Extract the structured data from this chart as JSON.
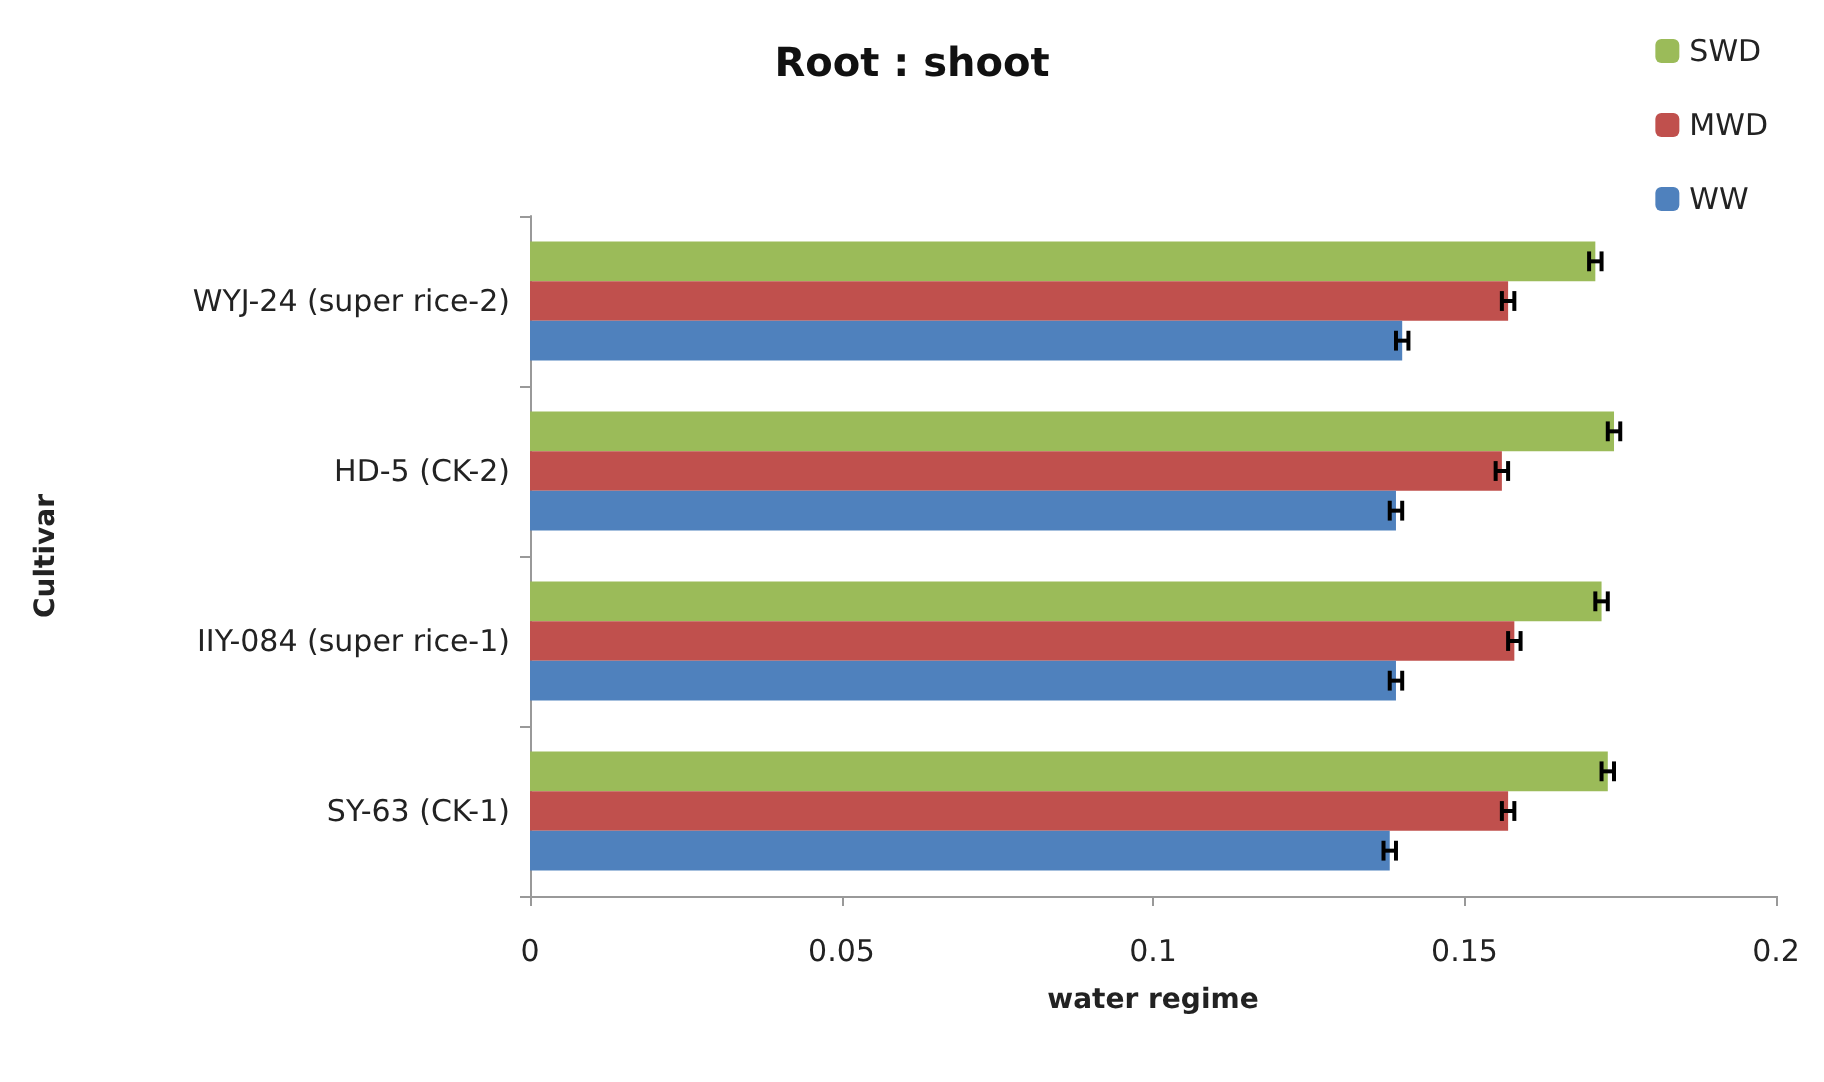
{
  "chart_data": {
    "type": "bar",
    "orientation": "horizontal",
    "title": "Root : shoot",
    "xlabel": "water regime",
    "ylabel": "Cultivar",
    "categories": [
      "WYJ-24 (super rice-2)",
      "HD-5 (CK-2)",
      "IIY-084 (super rice-1)",
      "SY-63 (CK-1)"
    ],
    "series": [
      {
        "name": "SWD",
        "color": "#9bbb59",
        "values": [
          0.171,
          0.174,
          0.172,
          0.173
        ],
        "errors": [
          0.001,
          0.001,
          0.001,
          0.001
        ]
      },
      {
        "name": "MWD",
        "color": "#c0504d",
        "values": [
          0.157,
          0.156,
          0.158,
          0.157
        ],
        "errors": [
          0.001,
          0.001,
          0.001,
          0.001
        ]
      },
      {
        "name": "WW",
        "color": "#4f81bd",
        "values": [
          0.14,
          0.139,
          0.139,
          0.138
        ],
        "errors": [
          0.001,
          0.001,
          0.001,
          0.001
        ]
      }
    ],
    "xlim": [
      0,
      0.2
    ],
    "xticks": [
      0,
      0.05,
      0.1,
      0.15,
      0.2
    ],
    "legend": "top right",
    "grid": false
  }
}
